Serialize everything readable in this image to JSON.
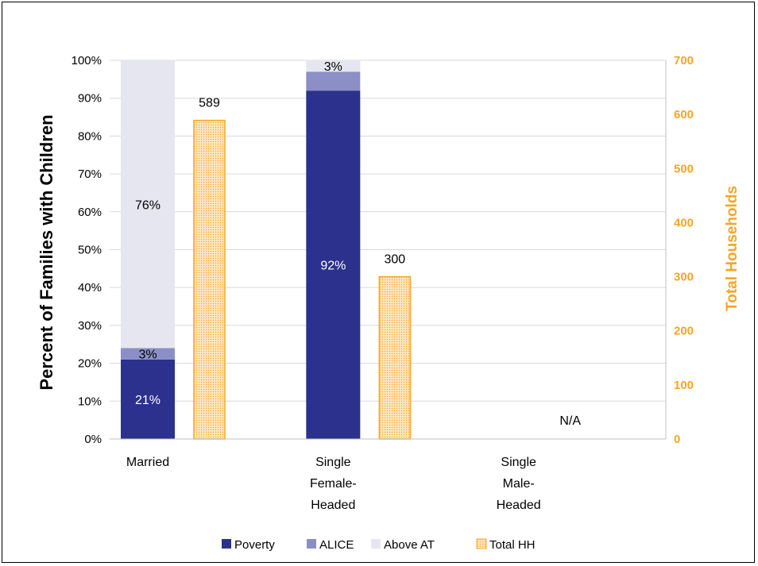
{
  "chart_data": {
    "type": "bar",
    "categories": [
      {
        "lines": [
          "Married"
        ]
      },
      {
        "lines": [
          "Single",
          "Female-",
          "Headed"
        ]
      },
      {
        "lines": [
          "Single",
          "Male-",
          "Headed"
        ]
      }
    ],
    "series": [
      {
        "name": "Poverty",
        "axis": "left",
        "stack": "pct",
        "values": [
          21,
          92,
          null
        ],
        "labels": [
          "21%",
          "92%",
          ""
        ],
        "color": "#2b318c",
        "label_color": "#ffffff"
      },
      {
        "name": "ALICE",
        "axis": "left",
        "stack": "pct",
        "values": [
          3,
          5,
          null
        ],
        "labels": [
          "3%",
          "",
          ""
        ],
        "color": "#8c8fc6",
        "label_color": "#000000"
      },
      {
        "name": "Above AT",
        "axis": "left",
        "stack": "pct",
        "values": [
          76,
          3,
          null
        ],
        "labels": [
          "76%",
          "3%",
          ""
        ],
        "color": "#e6e6f0",
        "label_color": "#000000"
      },
      {
        "name": "Total HH",
        "axis": "right",
        "values": [
          589,
          300,
          null
        ],
        "labels": [
          "589",
          "300",
          ""
        ],
        "color": "#f5a623",
        "fill": "#fde7c2"
      }
    ],
    "na_label": "N/A",
    "ylabel": "Percent of Families with Children",
    "y2label": "Total Households",
    "ylim": [
      0,
      100
    ],
    "y2lim": [
      0,
      700
    ],
    "yticks": [
      "0%",
      "10%",
      "20%",
      "30%",
      "40%",
      "50%",
      "60%",
      "70%",
      "80%",
      "90%",
      "100%"
    ],
    "y2ticks": [
      "0",
      "100",
      "200",
      "300",
      "400",
      "500",
      "600",
      "700"
    ],
    "y2_color": "#f5a623",
    "grid": true,
    "legend_position": "bottom"
  }
}
